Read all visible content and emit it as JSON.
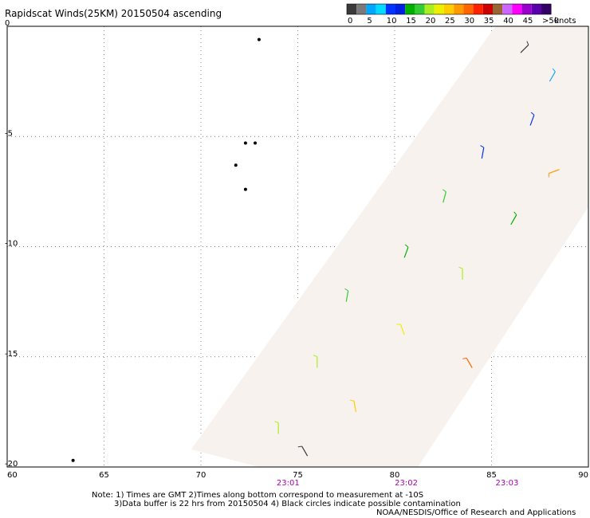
{
  "chart_data": {
    "type": "scatter",
    "title": "Rapidscat Winds(25KM) 20150504 ascending",
    "xlim": [
      60,
      90
    ],
    "ylim": [
      -20,
      0
    ],
    "x_ticks": [
      "60",
      "65",
      "70",
      "75",
      "80",
      "85",
      "90"
    ],
    "y_ticks": [
      "0",
      "-5",
      "-10",
      "-15",
      "-20"
    ],
    "grid": true,
    "legend": {
      "placement": "top-right",
      "unit": "knots",
      "bins": [
        {
          "label": "0",
          "color": "#3a3a3a"
        },
        {
          "label": "",
          "color": "#7a7a7a"
        },
        {
          "label": "5",
          "color": "#00a7ff"
        },
        {
          "label": "",
          "color": "#00ddff"
        },
        {
          "label": "10",
          "color": "#0033ff"
        },
        {
          "label": "",
          "color": "#001fe0"
        },
        {
          "label": "15",
          "color": "#00b000"
        },
        {
          "label": "",
          "color": "#33cc33"
        },
        {
          "label": "20",
          "color": "#aaee22"
        },
        {
          "label": "",
          "color": "#eeee00"
        },
        {
          "label": "25",
          "color": "#ffcc00"
        },
        {
          "label": "",
          "color": "#ff9900"
        },
        {
          "label": "30",
          "color": "#ff6600"
        },
        {
          "label": "",
          "color": "#ff2200"
        },
        {
          "label": "35",
          "color": "#cc0000"
        },
        {
          "label": "",
          "color": "#996633"
        },
        {
          "label": "40",
          "color": "#cc66ff"
        },
        {
          "label": "",
          "color": "#ff00ff"
        },
        {
          "label": "45",
          "color": "#9900cc"
        },
        {
          "label": "",
          "color": "#5a00aa"
        },
        {
          "label": ">50",
          "color": "#330066"
        }
      ]
    },
    "time_labels": [
      {
        "lon": 74.5,
        "label": "23:01"
      },
      {
        "lon": 80.6,
        "label": "23:02"
      },
      {
        "lon": 85.8,
        "label": "23:03"
      }
    ],
    "time_label_color": "#aa00aa",
    "swath": [
      [
        85.2,
        0
      ],
      [
        90,
        0
      ],
      [
        90,
        -8.2
      ],
      [
        81.2,
        -20
      ],
      [
        73,
        -20
      ],
      [
        69.5,
        -19.2
      ]
    ],
    "wind_samples": [
      {
        "lon": 86.5,
        "lat": -1.2,
        "speed": 0,
        "dir": 45
      },
      {
        "lon": 88.0,
        "lat": -2.5,
        "speed": 7,
        "dir": 60
      },
      {
        "lon": 87.0,
        "lat": -4.5,
        "speed": 11,
        "dir": 70
      },
      {
        "lon": 84.5,
        "lat": -6.0,
        "speed": 12,
        "dir": 80
      },
      {
        "lon": 88.5,
        "lat": -6.5,
        "speed": 29,
        "dir": 200
      },
      {
        "lon": 82.5,
        "lat": -8.0,
        "speed": 18,
        "dir": 75
      },
      {
        "lon": 86.0,
        "lat": -9.0,
        "speed": 17,
        "dir": 60
      },
      {
        "lon": 80.5,
        "lat": -10.5,
        "speed": 17,
        "dir": 70
      },
      {
        "lon": 83.5,
        "lat": -11.5,
        "speed": 22,
        "dir": 90
      },
      {
        "lon": 77.5,
        "lat": -12.5,
        "speed": 18,
        "dir": 80
      },
      {
        "lon": 80.5,
        "lat": -14.0,
        "speed": 24,
        "dir": 110
      },
      {
        "lon": 84.0,
        "lat": -15.5,
        "speed": 32,
        "dir": 120
      },
      {
        "lon": 76.0,
        "lat": -15.5,
        "speed": 20,
        "dir": 90
      },
      {
        "lon": 78.0,
        "lat": -17.5,
        "speed": 26,
        "dir": 100
      },
      {
        "lon": 74.0,
        "lat": -18.5,
        "speed": 21,
        "dir": 90
      },
      {
        "lon": 75.5,
        "lat": -19.5,
        "speed": 0,
        "dir": 120
      }
    ],
    "islands": [
      {
        "lon": 73.0,
        "lat": -0.6
      },
      {
        "lon": 72.3,
        "lat": -5.3
      },
      {
        "lon": 72.8,
        "lat": -5.3
      },
      {
        "lon": 71.8,
        "lat": -6.3
      },
      {
        "lon": 72.3,
        "lat": -7.4
      },
      {
        "lon": 63.4,
        "lat": -19.7
      }
    ]
  },
  "notes": [
    "Note: 1) Times are GMT 2)Times along bottom correspond to measurement at -10S",
    "3)Data buffer is 22 hrs from 20150504 4) Black circles indicate possible contamination",
    "NOAA/NESDIS/Office of Research and Applications"
  ]
}
